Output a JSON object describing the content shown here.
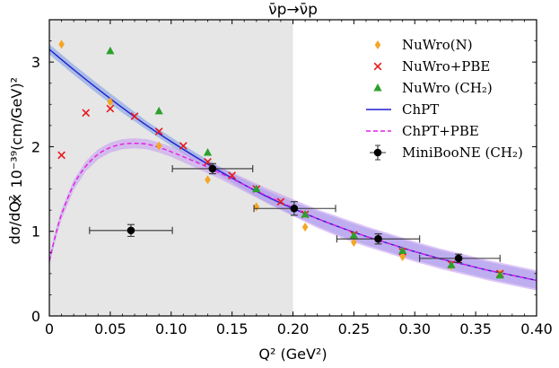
{
  "chart_data": {
    "type": "scatter",
    "title": "ν̄p→ν̄p",
    "xlabel": "Q² (GeV²)",
    "ylabel": "× 10⁻³⁹(cm/GeV)²",
    "ylabel_prefix": "dσ/dQ²",
    "xlim": [
      0,
      0.4
    ],
    "ylim": [
      0,
      3.5
    ],
    "x_ticks": [
      0,
      0.05,
      0.1,
      0.15,
      0.2,
      0.25,
      0.3,
      0.35,
      0.4
    ],
    "x_tick_labels": [
      "0",
      "0.05",
      "0.10",
      "0.15",
      "0.20",
      "0.25",
      "0.30",
      "0.35",
      "0.40"
    ],
    "y_ticks": [
      0,
      1,
      2,
      3
    ],
    "y_tick_labels": [
      "0",
      "1",
      "2",
      "3"
    ],
    "shaded_region": {
      "x": [
        0,
        0.2
      ],
      "color": "#e6e6e6"
    },
    "series": [
      {
        "name": "NuWro(N)",
        "kind": "scatter",
        "marker": "diamond",
        "color": "#f5a623",
        "points": [
          [
            0.01,
            3.21
          ],
          [
            0.05,
            2.53
          ],
          [
            0.09,
            2.01
          ],
          [
            0.13,
            1.61
          ],
          [
            0.17,
            1.29
          ],
          [
            0.21,
            1.05
          ],
          [
            0.25,
            0.87
          ],
          [
            0.29,
            0.7
          ],
          [
            0.33,
            0.59
          ],
          [
            0.37,
            0.5
          ]
        ]
      },
      {
        "name": "NuWro+PBE",
        "kind": "scatter",
        "marker": "x",
        "color": "#e8191b",
        "points": [
          [
            0.01,
            1.9
          ],
          [
            0.03,
            2.4
          ],
          [
            0.05,
            2.45
          ],
          [
            0.07,
            2.36
          ],
          [
            0.09,
            2.18
          ],
          [
            0.11,
            2.01
          ],
          [
            0.13,
            1.82
          ],
          [
            0.15,
            1.66
          ],
          [
            0.17,
            1.5
          ],
          [
            0.19,
            1.35
          ],
          [
            0.21,
            1.2
          ],
          [
            0.25,
            0.96
          ],
          [
            0.29,
            0.76
          ],
          [
            0.33,
            0.61
          ],
          [
            0.37,
            0.5
          ]
        ]
      },
      {
        "name": "NuWro (CH₂)",
        "kind": "scatter",
        "marker": "triangle",
        "color": "#2ca02c",
        "points": [
          [
            0.05,
            3.13
          ],
          [
            0.09,
            2.42
          ],
          [
            0.13,
            1.93
          ],
          [
            0.17,
            1.5
          ],
          [
            0.21,
            1.2
          ],
          [
            0.25,
            0.95
          ],
          [
            0.29,
            0.77
          ],
          [
            0.33,
            0.6
          ],
          [
            0.37,
            0.48
          ]
        ]
      },
      {
        "name": "ChPT",
        "kind": "line",
        "style": "solid",
        "color": "#1f1fcf",
        "band_color": "#7f9fe6",
        "x": [
          0.0,
          0.02,
          0.04,
          0.06,
          0.08,
          0.1,
          0.12,
          0.14,
          0.16,
          0.18,
          0.2,
          0.22,
          0.24,
          0.26,
          0.28,
          0.3,
          0.32,
          0.34,
          0.36,
          0.38,
          0.4
        ],
        "y": [
          3.15,
          2.91,
          2.68,
          2.46,
          2.25,
          2.06,
          1.88,
          1.71,
          1.55,
          1.4,
          1.27,
          1.15,
          1.04,
          0.94,
          0.85,
          0.76,
          0.68,
          0.61,
          0.54,
          0.48,
          0.42
        ],
        "band": [
          0.06,
          0.06,
          0.06,
          0.06,
          0.05,
          0.05,
          0.05,
          0.05,
          0.06,
          0.07,
          0.08,
          0.09,
          0.1,
          0.1,
          0.1,
          0.1,
          0.1,
          0.1,
          0.1,
          0.1,
          0.1
        ]
      },
      {
        "name": "ChPT+PBE",
        "kind": "line",
        "style": "dashed",
        "color": "#e51ee5",
        "band_color": "#c79ef0",
        "x": [
          0.0,
          0.005,
          0.01,
          0.02,
          0.03,
          0.04,
          0.05,
          0.06,
          0.07,
          0.08,
          0.09,
          0.1,
          0.12,
          0.14,
          0.16,
          0.18,
          0.2,
          0.22,
          0.24,
          0.26,
          0.28,
          0.3,
          0.32,
          0.34,
          0.36,
          0.38,
          0.4
        ],
        "y": [
          0.65,
          0.95,
          1.2,
          1.55,
          1.77,
          1.91,
          1.99,
          2.03,
          2.04,
          2.03,
          1.99,
          1.94,
          1.82,
          1.69,
          1.55,
          1.41,
          1.28,
          1.15,
          1.04,
          0.94,
          0.85,
          0.76,
          0.68,
          0.61,
          0.54,
          0.48,
          0.42
        ],
        "band": [
          0.06,
          0.06,
          0.06,
          0.06,
          0.06,
          0.06,
          0.06,
          0.06,
          0.06,
          0.06,
          0.06,
          0.06,
          0.07,
          0.07,
          0.08,
          0.09,
          0.1,
          0.11,
          0.12,
          0.12,
          0.12,
          0.12,
          0.12,
          0.12,
          0.12,
          0.12,
          0.12
        ]
      },
      {
        "name": "MiniBooNE (CH₂)",
        "kind": "errorbar",
        "marker": "circle",
        "color": "#000000",
        "points": [
          {
            "x": 0.067,
            "y": 1.01,
            "xerr": [
              0.034,
              0.034
            ],
            "yerr": 0.07
          },
          {
            "x": 0.134,
            "y": 1.74,
            "xerr": [
              0.033,
              0.033
            ],
            "yerr": 0.06
          },
          {
            "x": 0.201,
            "y": 1.27,
            "xerr": [
              0.033,
              0.034
            ],
            "yerr": 0.08
          },
          {
            "x": 0.27,
            "y": 0.91,
            "xerr": [
              0.034,
              0.034
            ],
            "yerr": 0.06
          },
          {
            "x": 0.336,
            "y": 0.68,
            "xerr": [
              0.032,
              0.034
            ],
            "yerr": 0.05
          }
        ]
      }
    ],
    "legend": {
      "position": "top-right",
      "entries": [
        "NuWro(N)",
        "NuWro+PBE",
        "NuWro (CH₂)",
        "ChPT",
        "ChPT+PBE",
        "MiniBooNE (CH₂)"
      ]
    }
  }
}
